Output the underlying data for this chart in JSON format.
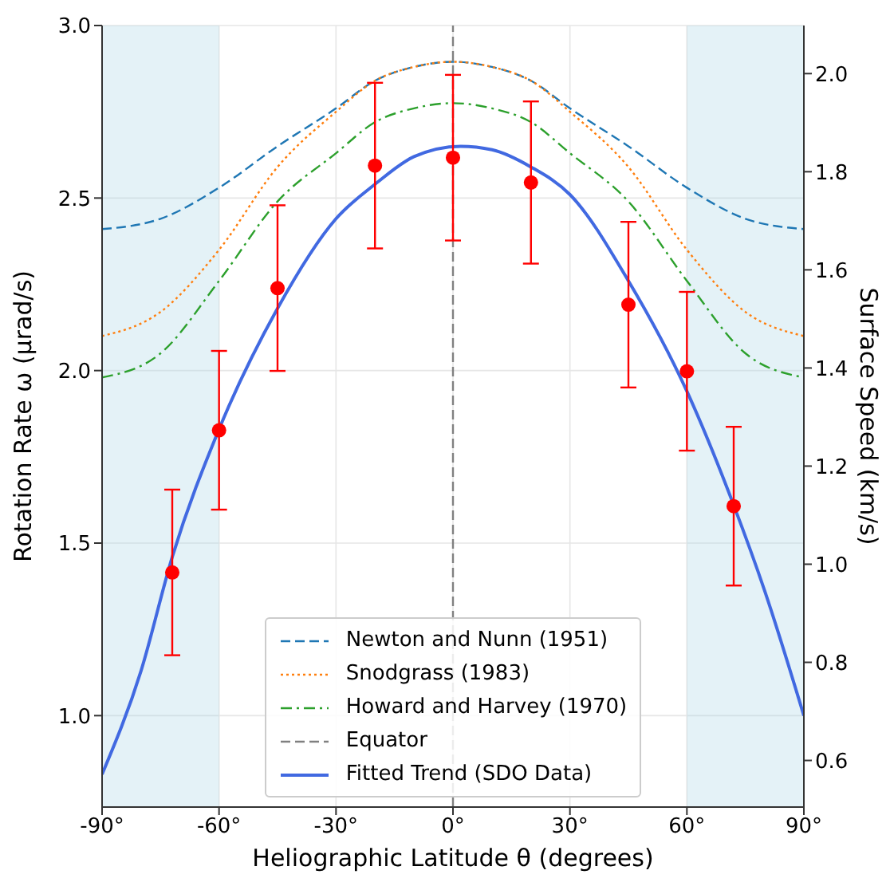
{
  "chart_data": {
    "type": "line",
    "xlabel": "Heliographic Latitude θ (degrees)",
    "ylabel": "Rotation Rate ω (μrad/s)",
    "y2label": "Surface Speed (km/s)",
    "xlim": [
      -90,
      90
    ],
    "xticks": [
      {
        "value": -90,
        "label": "-90°"
      },
      {
        "value": -60,
        "label": "-60°"
      },
      {
        "value": -30,
        "label": "-30°"
      },
      {
        "value": 0,
        "label": "0°"
      },
      {
        "value": 30,
        "label": "30°"
      },
      {
        "value": 60,
        "label": "60°"
      },
      {
        "value": 90,
        "label": "90°"
      }
    ],
    "ylim": [
      0.735,
      3.0
    ],
    "yticks": [
      {
        "value": 1,
        "label": "1.0"
      },
      1.5,
      {
        "value": 2,
        "label": "2.0"
      },
      2.5,
      {
        "value": 3,
        "label": "3.0"
      }
    ],
    "y2lim": [
      0.505,
      2.098
    ],
    "y2ticks": [
      0.6,
      0.8,
      {
        "value": 1,
        "label": "1.0"
      },
      1.2,
      1.4,
      1.6,
      1.8,
      {
        "value": 2,
        "label": "2.0"
      }
    ],
    "grid": true,
    "legend": "bottom",
    "series": [
      {
        "name": "Newton and Nunn (1951)",
        "type": "line",
        "line_style": "dashed",
        "color": "#1f77b4",
        "x": [
          -90,
          -75,
          -60,
          -45,
          -30,
          -20,
          -10,
          0,
          10,
          20,
          30,
          45,
          60,
          75,
          90
        ],
        "values": [
          2.41,
          2.44,
          2.53,
          2.65,
          2.76,
          2.84,
          2.88,
          2.895,
          2.88,
          2.84,
          2.76,
          2.65,
          2.53,
          2.44,
          2.41
        ]
      },
      {
        "name": "Snodgrass (1983)",
        "type": "line",
        "line_style": "dotted",
        "color": "#ff7f0e",
        "x": [
          -90,
          -75,
          -60,
          -45,
          -30,
          -20,
          -10,
          0,
          10,
          20,
          30,
          45,
          60,
          75,
          90
        ],
        "values": [
          2.1,
          2.17,
          2.35,
          2.59,
          2.75,
          2.84,
          2.88,
          2.895,
          2.88,
          2.84,
          2.75,
          2.59,
          2.35,
          2.17,
          2.1
        ]
      },
      {
        "name": "Howard and Harvey (1970)",
        "type": "line",
        "line_style": "dashdot",
        "color": "#2ca02c",
        "x": [
          -90,
          -75,
          -60,
          -45,
          -30,
          -20,
          -10,
          0,
          10,
          20,
          30,
          45,
          60,
          75,
          90
        ],
        "values": [
          1.98,
          2.05,
          2.26,
          2.49,
          2.63,
          2.72,
          2.76,
          2.775,
          2.76,
          2.72,
          2.63,
          2.49,
          2.26,
          2.05,
          1.98
        ]
      },
      {
        "name": "Fitted Trend (SDO Data)",
        "type": "line",
        "line_style": "solid",
        "color": "#4169e1",
        "x": [
          -90,
          -80,
          -72,
          -60,
          -45,
          -30,
          -20,
          -10,
          2,
          10,
          20,
          30,
          45,
          60,
          72,
          80,
          90
        ],
        "values": [
          0.83,
          1.13,
          1.46,
          1.83,
          2.18,
          2.44,
          2.54,
          2.62,
          2.65,
          2.64,
          2.59,
          2.51,
          2.26,
          1.94,
          1.61,
          1.36,
          1.0
        ]
      },
      {
        "type": "scatter",
        "marker": "circle",
        "color": "#ff0000",
        "x": [
          -72,
          -60,
          -45,
          -20,
          0,
          20,
          45,
          60,
          72
        ],
        "values": [
          1.415,
          1.827,
          2.239,
          2.594,
          2.617,
          2.545,
          2.191,
          1.998,
          1.607
        ],
        "errors": [
          0.24,
          0.23,
          0.24,
          0.24,
          0.24,
          0.235,
          0.24,
          0.23,
          0.23
        ]
      }
    ],
    "ref_lines": [
      {
        "axis": "x",
        "value": 0,
        "label": "Equator",
        "color": "#808080",
        "line_style": "dashed"
      }
    ],
    "bands": [
      {
        "axis": "x",
        "from": -90,
        "to": -60,
        "color": "#add8e6"
      },
      {
        "axis": "x",
        "from": 60,
        "to": 90,
        "color": "#add8e6"
      }
    ]
  }
}
